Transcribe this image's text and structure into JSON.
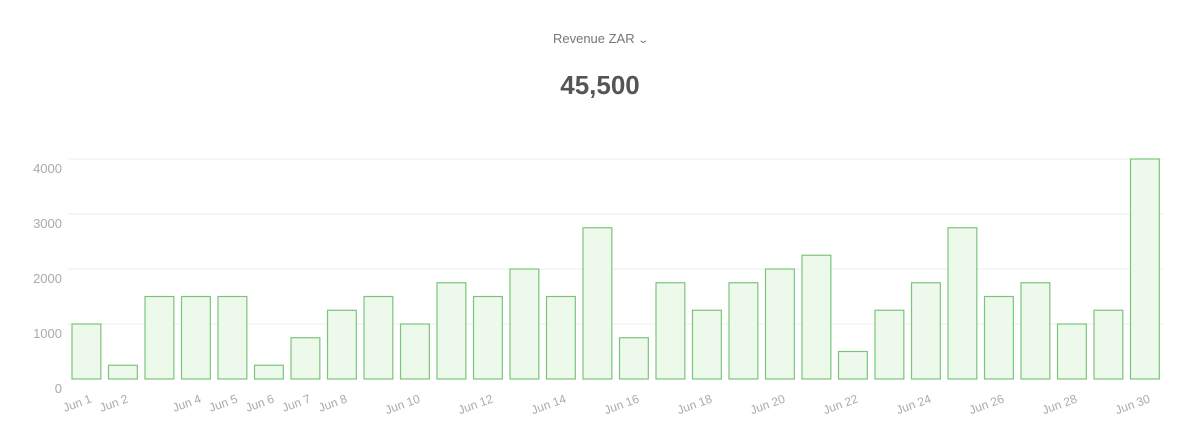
{
  "header": {
    "metric_label": "Revenue ZAR",
    "total": "45,500"
  },
  "colors": {
    "bar_fill": "#edfaeb",
    "bar_stroke": "#7cc47c",
    "grid": "#eeeeee",
    "tick": "#aaaaaa"
  },
  "chart_data": {
    "type": "bar",
    "title": "Revenue ZAR",
    "xlabel": "",
    "ylabel": "",
    "ylim": [
      0,
      4000
    ],
    "yticks": [
      0,
      1000,
      2000,
      3000,
      4000
    ],
    "grid": true,
    "categories": [
      "Jun 1",
      "Jun 2",
      "Jun 3",
      "Jun 4",
      "Jun 5",
      "Jun 6",
      "Jun 7",
      "Jun 8",
      "Jun 9",
      "Jun 10",
      "Jun 11",
      "Jun 12",
      "Jun 13",
      "Jun 14",
      "Jun 15",
      "Jun 16",
      "Jun 17",
      "Jun 18",
      "Jun 19",
      "Jun 20",
      "Jun 21",
      "Jun 22",
      "Jun 23",
      "Jun 24",
      "Jun 25",
      "Jun 26",
      "Jun 27",
      "Jun 28",
      "Jun 29",
      "Jun 30"
    ],
    "shown_xlabels": [
      "Jun 1",
      "Jun 2",
      "Jun 4",
      "Jun 5",
      "Jun 6",
      "Jun 7",
      "Jun 8",
      "Jun 10",
      "Jun 12",
      "Jun 14",
      "Jun 16",
      "Jun 18",
      "Jun 20",
      "Jun 22",
      "Jun 24",
      "Jun 26",
      "Jun 28",
      "Jun 30"
    ],
    "values": [
      1000,
      250,
      1500,
      1500,
      1500,
      250,
      750,
      1250,
      1500,
      1000,
      1750,
      1500,
      2000,
      1500,
      2750,
      750,
      1750,
      1250,
      1750,
      2000,
      2250,
      500,
      1250,
      1750,
      2750,
      1500,
      1750,
      1000,
      1250,
      4000
    ]
  }
}
